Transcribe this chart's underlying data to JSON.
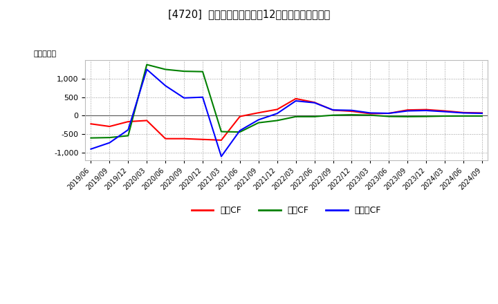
{
  "title": "[4720]  キャッシュフローの12か月移動合計の推移",
  "ylabel": "（百万円）",
  "xlabels": [
    "2019/06",
    "2019/09",
    "2019/12",
    "2020/03",
    "2020/06",
    "2020/09",
    "2020/12",
    "2021/03",
    "2021/06",
    "2021/09",
    "2021/12",
    "2022/03",
    "2022/06",
    "2022/09",
    "2022/12",
    "2023/03",
    "2023/06",
    "2023/09",
    "2023/12",
    "2024/03",
    "2024/06",
    "2024/09"
  ],
  "operating_cf": [
    -220,
    -290,
    -160,
    -130,
    -620,
    -620,
    -640,
    -660,
    -20,
    80,
    170,
    460,
    360,
    150,
    120,
    55,
    65,
    155,
    165,
    130,
    85,
    75
  ],
  "investing_cf": [
    -600,
    -590,
    -540,
    1380,
    1250,
    1200,
    1190,
    -430,
    -440,
    -190,
    -130,
    -25,
    -25,
    15,
    25,
    15,
    -20,
    -25,
    -20,
    -10,
    -8,
    -8
  ],
  "free_cf": [
    -900,
    -730,
    -380,
    1250,
    810,
    480,
    500,
    -1100,
    -400,
    -110,
    60,
    400,
    350,
    155,
    145,
    75,
    65,
    130,
    140,
    110,
    75,
    65
  ],
  "operating_color": "#ff0000",
  "investing_color": "#008000",
  "free_color": "#0000ff",
  "ylim": [
    -1200,
    1500
  ],
  "yticks": [
    -1000,
    -500,
    0,
    500,
    1000
  ],
  "bg_color": "#ffffff",
  "plot_bg_color": "#ffffff",
  "grid_color": "#999999",
  "legend_labels": [
    "営業CF",
    "投資CF",
    "フリーCF"
  ]
}
